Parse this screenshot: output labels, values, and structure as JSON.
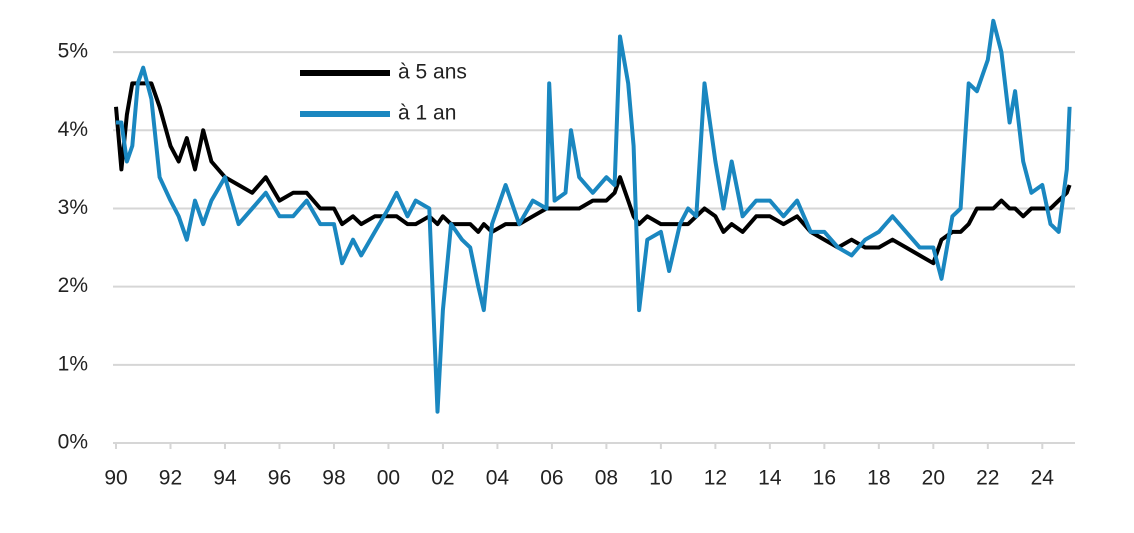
{
  "chart_data": {
    "type": "line",
    "x": [
      1990.0,
      1990.2,
      1990.4,
      1990.6,
      1990.8,
      1991.0,
      1991.3,
      1991.6,
      1992.0,
      1992.3,
      1992.6,
      1992.9,
      1993.2,
      1993.5,
      1994.0,
      1994.5,
      1995.0,
      1995.5,
      1996.0,
      1996.5,
      1997.0,
      1997.5,
      1998.0,
      1998.3,
      1998.7,
      1999.0,
      1999.5,
      2000.0,
      2000.3,
      2000.7,
      2001.0,
      2001.5,
      2001.8,
      2002.0,
      2002.3,
      2002.7,
      2003.0,
      2003.3,
      2003.5,
      2003.8,
      2004.3,
      2004.8,
      2005.3,
      2005.8,
      2005.9,
      2006.1,
      2006.5,
      2006.7,
      2007.0,
      2007.5,
      2008.0,
      2008.3,
      2008.5,
      2008.8,
      2009.0,
      2009.2,
      2009.5,
      2010.0,
      2010.3,
      2010.7,
      2011.0,
      2011.3,
      2011.6,
      2012.0,
      2012.3,
      2012.6,
      2013.0,
      2013.5,
      2014.0,
      2014.5,
      2015.0,
      2015.5,
      2016.0,
      2016.5,
      2017.0,
      2017.5,
      2018.0,
      2018.5,
      2019.0,
      2019.5,
      2020.0,
      2020.3,
      2020.7,
      2021.0,
      2021.3,
      2021.6,
      2022.0,
      2022.2,
      2022.5,
      2022.8,
      2023.0,
      2023.3,
      2023.6,
      2024.0,
      2024.3,
      2024.6,
      2024.9,
      2025.0
    ],
    "series": [
      {
        "name": "à 5 ans",
        "color": "#000000",
        "values": [
          4.3,
          3.5,
          4.2,
          4.6,
          4.6,
          4.6,
          4.6,
          4.3,
          3.8,
          3.6,
          3.9,
          3.5,
          4.0,
          3.6,
          3.4,
          3.3,
          3.2,
          3.4,
          3.1,
          3.2,
          3.2,
          3.0,
          3.0,
          2.8,
          2.9,
          2.8,
          2.9,
          2.9,
          2.9,
          2.8,
          2.8,
          2.9,
          2.8,
          2.9,
          2.8,
          2.8,
          2.8,
          2.7,
          2.8,
          2.7,
          2.8,
          2.8,
          2.9,
          3.0,
          3.0,
          3.0,
          3.0,
          3.0,
          3.0,
          3.1,
          3.1,
          3.2,
          3.4,
          3.1,
          2.9,
          2.8,
          2.9,
          2.8,
          2.8,
          2.8,
          2.8,
          2.9,
          3.0,
          2.9,
          2.7,
          2.8,
          2.7,
          2.9,
          2.9,
          2.8,
          2.9,
          2.7,
          2.6,
          2.5,
          2.6,
          2.5,
          2.5,
          2.6,
          2.5,
          2.4,
          2.3,
          2.6,
          2.7,
          2.7,
          2.8,
          3.0,
          3.0,
          3.0,
          3.1,
          3.0,
          3.0,
          2.9,
          3.0,
          3.0,
          3.0,
          3.1,
          3.2,
          3.3
        ]
      },
      {
        "name": "à 1 an",
        "color": "#1a87c0",
        "values": [
          4.1,
          4.1,
          3.6,
          3.8,
          4.6,
          4.8,
          4.4,
          3.4,
          3.1,
          2.9,
          2.6,
          3.1,
          2.8,
          3.1,
          3.4,
          2.8,
          3.0,
          3.2,
          2.9,
          2.9,
          3.1,
          2.8,
          2.8,
          2.3,
          2.6,
          2.4,
          2.7,
          3.0,
          3.2,
          2.9,
          3.1,
          3.0,
          0.4,
          1.7,
          2.8,
          2.6,
          2.5,
          2.0,
          1.7,
          2.8,
          3.3,
          2.8,
          3.1,
          3.0,
          4.6,
          3.1,
          3.2,
          4.0,
          3.4,
          3.2,
          3.4,
          3.3,
          5.2,
          4.6,
          3.8,
          1.7,
          2.6,
          2.7,
          2.2,
          2.8,
          3.0,
          2.9,
          4.6,
          3.6,
          3.0,
          3.6,
          2.9,
          3.1,
          3.1,
          2.9,
          3.1,
          2.7,
          2.7,
          2.5,
          2.4,
          2.6,
          2.7,
          2.9,
          2.7,
          2.5,
          2.5,
          2.1,
          2.9,
          3.0,
          4.6,
          4.5,
          4.9,
          5.4,
          5.0,
          4.1,
          4.5,
          3.6,
          3.2,
          3.3,
          2.8,
          2.7,
          3.5,
          4.3
        ]
      }
    ],
    "xlim": [
      1990,
      2025.2
    ],
    "xticks": [
      {
        "value": 1990,
        "label": "90"
      },
      {
        "value": 1992,
        "label": "92"
      },
      {
        "value": 1994,
        "label": "94"
      },
      {
        "value": 1996,
        "label": "96"
      },
      {
        "value": 1998,
        "label": "98"
      },
      {
        "value": 2000,
        "label": "00"
      },
      {
        "value": 2002,
        "label": "02"
      },
      {
        "value": 2004,
        "label": "04"
      },
      {
        "value": 2006,
        "label": "06"
      },
      {
        "value": 2008,
        "label": "08"
      },
      {
        "value": 2010,
        "label": "10"
      },
      {
        "value": 2012,
        "label": "12"
      },
      {
        "value": 2014,
        "label": "14"
      },
      {
        "value": 2016,
        "label": "16"
      },
      {
        "value": 2018,
        "label": "18"
      },
      {
        "value": 2020,
        "label": "20"
      },
      {
        "value": 2022,
        "label": "22"
      },
      {
        "value": 2024,
        "label": "24"
      }
    ],
    "ylim": [
      0,
      5.5
    ],
    "yticks": [
      {
        "value": 0,
        "label": "0%"
      },
      {
        "value": 1,
        "label": "1%"
      },
      {
        "value": 2,
        "label": "2%"
      },
      {
        "value": 3,
        "label": "3%"
      },
      {
        "value": 4,
        "label": "4%"
      },
      {
        "value": 5,
        "label": "5%"
      }
    ],
    "grid": true,
    "legend": "top-left"
  }
}
